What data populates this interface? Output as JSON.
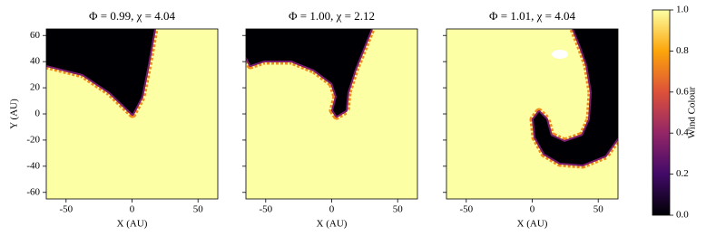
{
  "chart_data": [
    {
      "type": "heatmap",
      "title": "Φ = 0.99, χ = 4.04",
      "xlabel": "X (AU)",
      "ylabel": "Y (AU)",
      "xlim": [
        -65,
        65
      ],
      "ylim": [
        -65,
        65
      ],
      "xticks": [
        -50,
        0,
        50
      ],
      "yticks": [
        -60,
        -40,
        -20,
        0,
        20,
        40,
        60
      ]
    },
    {
      "type": "heatmap",
      "title": "Φ = 1.00, χ = 2.12",
      "xlabel": "X (AU)",
      "xlim": [
        -65,
        65
      ],
      "ylim": [
        -65,
        65
      ],
      "xticks": [
        -50,
        0,
        50
      ],
      "sharey": true
    },
    {
      "type": "heatmap",
      "title": "Φ = 1.01, χ = 4.04",
      "xlabel": "X (AU)",
      "xlim": [
        -65,
        65
      ],
      "ylim": [
        -65,
        65
      ],
      "xticks": [
        -50,
        0,
        50
      ],
      "sharey": true
    },
    {
      "type": "colorbar",
      "label": "Wind Colour",
      "ylim": [
        0,
        1
      ],
      "yticks": [
        {
          "value": 0,
          "label": "0.0"
        },
        {
          "value": 0.2,
          "label": "0.2"
        },
        {
          "value": 0.4,
          "label": "0.4"
        },
        {
          "value": 0.6,
          "label": "0.6"
        },
        {
          "value": 0.8,
          "label": "0.8"
        },
        {
          "value": 1,
          "label": "1.0"
        }
      ]
    }
  ]
}
